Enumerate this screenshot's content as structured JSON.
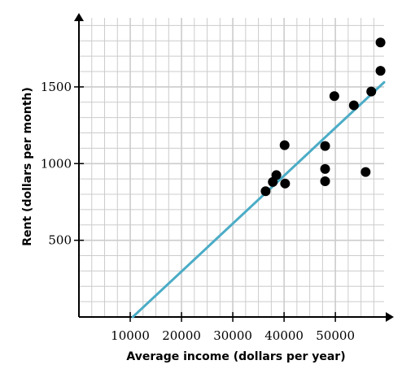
{
  "chart_data": {
    "type": "scatter",
    "xlabel": "Average income (dollars per year)",
    "ylabel": "Rent (dollars per month)",
    "xlim": [
      0,
      59500
    ],
    "ylim": [
      0,
      1950
    ],
    "x_ticks": [
      10000,
      20000,
      30000,
      40000,
      50000
    ],
    "x_tick_labels": [
      "10000",
      "20000",
      "30000",
      "40000",
      "50000"
    ],
    "y_ticks": [
      500,
      1000,
      1500
    ],
    "y_tick_labels": [
      "500",
      "1000",
      "1500"
    ],
    "grid": true,
    "minor_grid": {
      "x_step": 2500,
      "y_step": 100
    },
    "points": [
      {
        "x": 36400,
        "y": 820
      },
      {
        "x": 37800,
        "y": 880
      },
      {
        "x": 38500,
        "y": 925
      },
      {
        "x": 40200,
        "y": 870
      },
      {
        "x": 40100,
        "y": 1120
      },
      {
        "x": 48000,
        "y": 1115
      },
      {
        "x": 48000,
        "y": 965
      },
      {
        "x": 48000,
        "y": 885
      },
      {
        "x": 49800,
        "y": 1440
      },
      {
        "x": 53600,
        "y": 1380
      },
      {
        "x": 55900,
        "y": 945
      },
      {
        "x": 57000,
        "y": 1470
      },
      {
        "x": 58800,
        "y": 1605
      },
      {
        "x": 58800,
        "y": 1790
      }
    ],
    "trend_line": {
      "x1": 10500,
      "y1": 0,
      "x2": 59500,
      "y2": 1530
    },
    "colors": {
      "points": "#000000",
      "trend_line": "#4bacc6",
      "grid": "#cccccc",
      "axes": "#000000"
    }
  }
}
